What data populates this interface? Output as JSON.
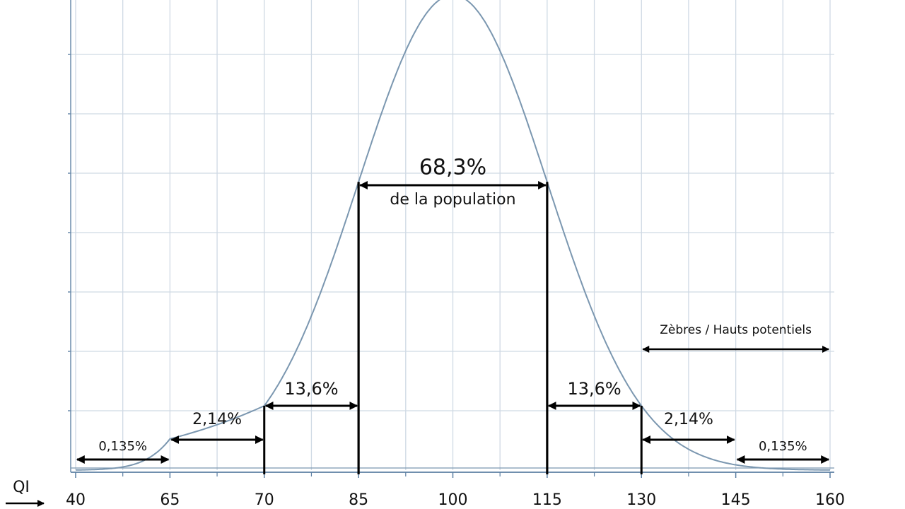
{
  "chart_data": {
    "type": "distribution",
    "x_label": "QI",
    "xticks": [
      40,
      65,
      70,
      85,
      100,
      115,
      130,
      145,
      160
    ],
    "intervals": {
      "labels": [
        "0,135%",
        "2,14%",
        "13,6%",
        "68,3%",
        "13,6%",
        "2,14%",
        "0,135%"
      ],
      "from": [
        40,
        65,
        70,
        85,
        115,
        130,
        145
      ],
      "to": [
        65,
        70,
        85,
        115,
        130,
        145,
        160
      ]
    },
    "center_note": "de la population",
    "highlight": {
      "label": "Zèbres / Hauts potentiels",
      "from": 130,
      "to": 160
    },
    "grid": true
  }
}
